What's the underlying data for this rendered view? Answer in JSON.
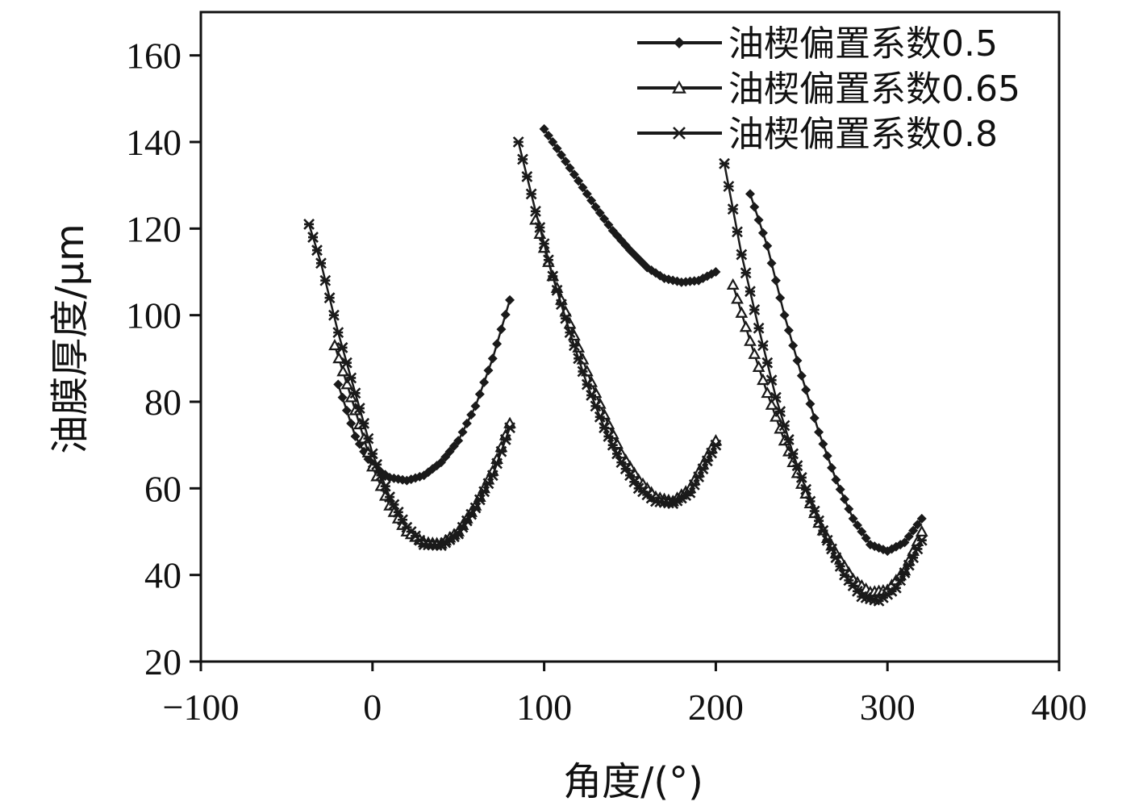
{
  "chart_data": {
    "type": "line",
    "title": "",
    "xlabel": "角度/(°)",
    "ylabel": "油膜厚度/μm",
    "xlim": [
      -100,
      400
    ],
    "ylim": [
      20,
      170
    ],
    "xticks": [
      -100,
      0,
      100,
      200,
      300,
      400
    ],
    "xtick_labels": [
      "−100",
      "0",
      "100",
      "200",
      "300",
      "400"
    ],
    "yticks": [
      20,
      40,
      60,
      80,
      100,
      120,
      140,
      160
    ],
    "ytick_labels": [
      "20",
      "40",
      "60",
      "80",
      "100",
      "120",
      "140",
      "160"
    ],
    "grid": false,
    "legend_position": "top-right",
    "line_color": "#1a1a1a",
    "series": [
      {
        "name": "油楔偏置系数0.5",
        "marker": "diamond",
        "segments": [
          [
            [
              -20,
              84
            ],
            [
              -10,
              72
            ],
            [
              0,
              65
            ],
            [
              10,
              62.5
            ],
            [
              20,
              61.8
            ],
            [
              30,
              63
            ],
            [
              40,
              66
            ],
            [
              50,
              71
            ],
            [
              60,
              79
            ],
            [
              70,
              90
            ],
            [
              80,
              103.5
            ]
          ],
          [
            [
              100,
              143
            ],
            [
              110,
              137
            ],
            [
              120,
              131
            ],
            [
              130,
              125
            ],
            [
              140,
              119.5
            ],
            [
              150,
              115
            ],
            [
              160,
              111
            ],
            [
              170,
              108.5
            ],
            [
              180,
              107.6
            ],
            [
              190,
              108
            ],
            [
              200,
              110
            ]
          ],
          [
            [
              220,
              128
            ],
            [
              230,
              116
            ],
            [
              240,
              100
            ],
            [
              250,
              86
            ],
            [
              260,
              73
            ],
            [
              270,
              62
            ],
            [
              280,
              53
            ],
            [
              290,
              47
            ],
            [
              300,
              45.5
            ],
            [
              310,
              47.5
            ],
            [
              320,
              53
            ]
          ]
        ]
      },
      {
        "name": "油楔偏置系数0.65",
        "marker": "triangle",
        "segments": [
          [
            [
              -22,
              93
            ],
            [
              -10,
              78
            ],
            [
              0,
              65
            ],
            [
              10,
              56
            ],
            [
              20,
              50
            ],
            [
              30,
              47.5
            ],
            [
              40,
              47.2
            ],
            [
              50,
              50
            ],
            [
              60,
              56
            ],
            [
              70,
              64
            ],
            [
              80,
              75
            ]
          ],
          [
            [
              95,
              122
            ],
            [
              105,
              109
            ],
            [
              115,
              98
            ],
            [
              125,
              87
            ],
            [
              135,
              77
            ],
            [
              145,
              68
            ],
            [
              155,
              62
            ],
            [
              165,
              58
            ],
            [
              175,
              57
            ],
            [
              185,
              60
            ],
            [
              200,
              71
            ]
          ],
          [
            [
              210,
              107
            ],
            [
              220,
              94
            ],
            [
              230,
              82
            ],
            [
              240,
              71
            ],
            [
              250,
              61
            ],
            [
              260,
              52
            ],
            [
              270,
              45
            ],
            [
              280,
              39
            ],
            [
              290,
              36
            ],
            [
              300,
              36.5
            ],
            [
              310,
              41
            ],
            [
              320,
              50
            ]
          ]
        ]
      },
      {
        "name": "油楔偏置系数0.8",
        "marker": "star",
        "segments": [
          [
            [
              -37,
              121
            ],
            [
              -30,
              112
            ],
            [
              -20,
              96
            ],
            [
              -10,
              82
            ],
            [
              0,
              68
            ],
            [
              10,
              58
            ],
            [
              20,
              51
            ],
            [
              30,
              47
            ],
            [
              40,
              46.8
            ],
            [
              50,
              49.5
            ],
            [
              60,
              55.5
            ],
            [
              70,
              63
            ],
            [
              80,
              74
            ]
          ],
          [
            [
              85,
              140
            ],
            [
              95,
              124
            ],
            [
              105,
              109
            ],
            [
              115,
              96
            ],
            [
              125,
              84
            ],
            [
              135,
              74
            ],
            [
              145,
              66
            ],
            [
              155,
              60
            ],
            [
              165,
              57
            ],
            [
              175,
              56.5
            ],
            [
              185,
              59
            ],
            [
              200,
              70
            ]
          ],
          [
            [
              205,
              135
            ],
            [
              215,
              114
            ],
            [
              225,
              97
            ],
            [
              235,
              81
            ],
            [
              245,
              68
            ],
            [
              255,
              57
            ],
            [
              265,
              48
            ],
            [
              275,
              40
            ],
            [
              285,
              35
            ],
            [
              295,
              34
            ],
            [
              305,
              37
            ],
            [
              315,
              44
            ],
            [
              320,
              48
            ]
          ]
        ]
      }
    ]
  }
}
